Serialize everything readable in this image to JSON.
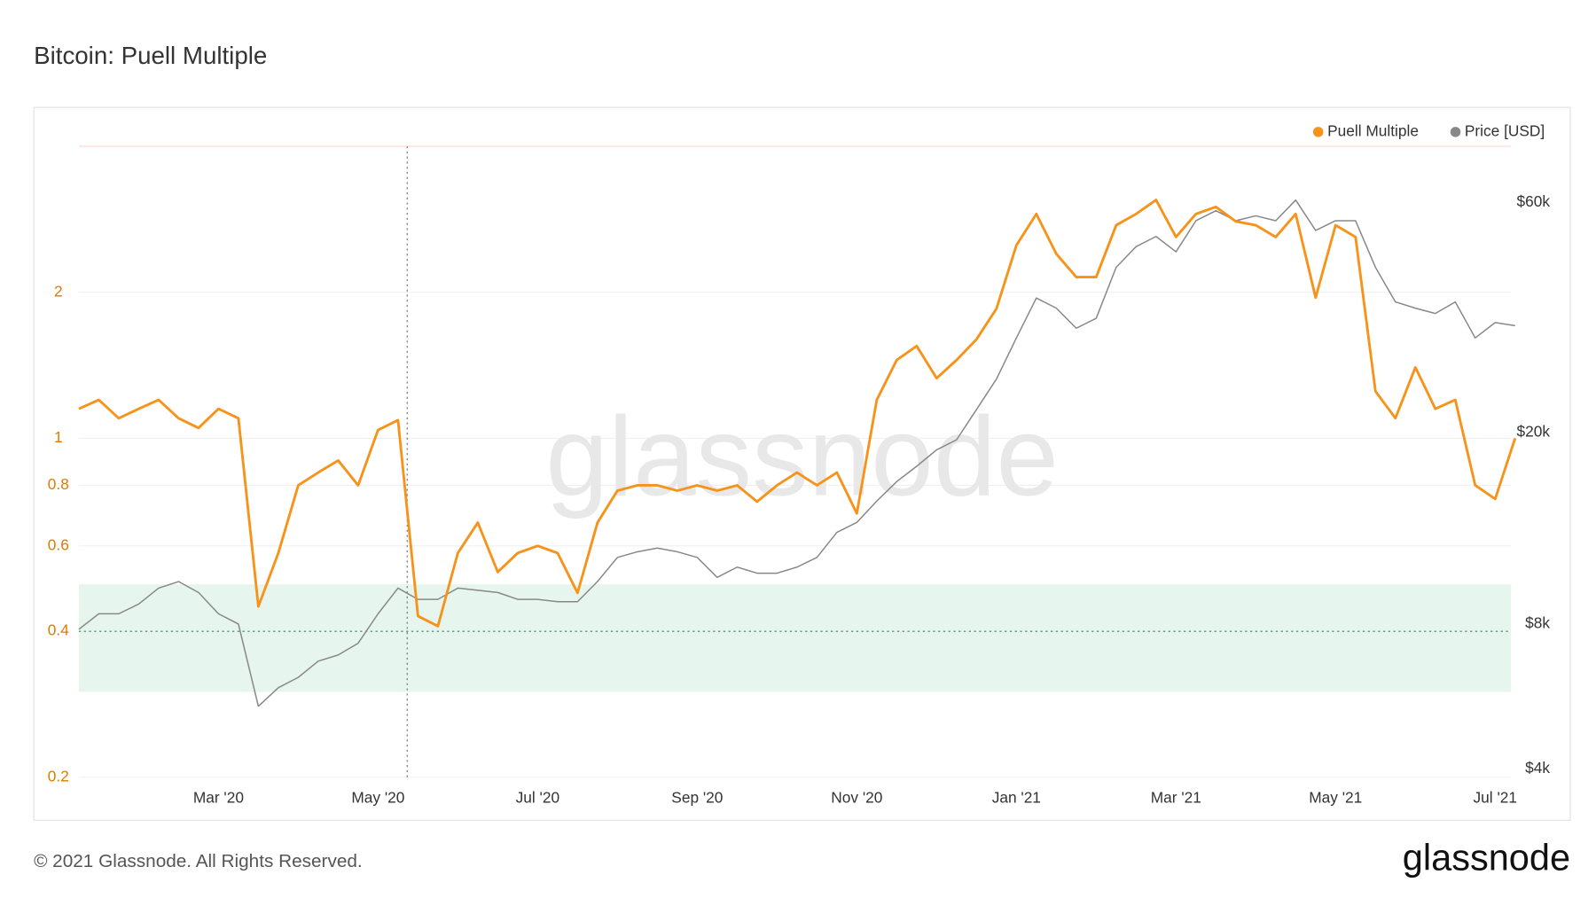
{
  "chart_data": {
    "type": "line",
    "title": "Bitcoin: Puell Multiple",
    "categories": [
      null,
      null,
      null,
      null,
      null,
      null,
      null,
      "Mar '20",
      null,
      null,
      null,
      null,
      null,
      null,
      null,
      "May '20",
      null,
      null,
      null,
      null,
      null,
      null,
      null,
      "Jul '20",
      null,
      null,
      null,
      null,
      null,
      null,
      null,
      "Sep '20",
      null,
      null,
      null,
      null,
      null,
      null,
      null,
      "Nov '20",
      null,
      null,
      null,
      null,
      null,
      null,
      null,
      "Jan '21",
      null,
      null,
      null,
      null,
      null,
      null,
      null,
      "Mar '21",
      null,
      null,
      null,
      null,
      null,
      null,
      null,
      "May '21",
      null,
      null,
      null,
      null,
      null,
      null,
      null,
      "Jul '21",
      null
    ],
    "series": [
      {
        "name": "Puell Multiple",
        "color": "#f7931a",
        "axis": "y",
        "values": [
          1.15,
          1.2,
          1.1,
          1.15,
          1.2,
          1.1,
          1.05,
          1.15,
          1.1,
          0.45,
          0.58,
          0.8,
          0.85,
          0.9,
          0.8,
          1.04,
          1.09,
          0.43,
          0.41,
          0.58,
          0.67,
          0.53,
          0.58,
          0.6,
          0.58,
          0.48,
          0.67,
          0.78,
          0.8,
          0.8,
          0.78,
          0.8,
          0.78,
          0.8,
          0.74,
          0.8,
          0.85,
          0.8,
          0.85,
          0.7,
          1.2,
          1.45,
          1.55,
          1.33,
          1.45,
          1.6,
          1.85,
          2.5,
          2.9,
          2.4,
          2.15,
          2.15,
          2.75,
          2.9,
          3.1,
          2.6,
          2.9,
          3.0,
          2.8,
          2.75,
          2.6,
          2.9,
          1.95,
          2.75,
          2.6,
          1.25,
          1.1,
          1.4,
          1.15,
          1.2,
          0.8,
          0.75,
          1.0
        ]
      },
      {
        "name": "Price [USD]",
        "color": "#888888",
        "axis": "y2",
        "values": [
          7800,
          8400,
          8400,
          8800,
          9500,
          9800,
          9300,
          8400,
          8000,
          5400,
          5900,
          6200,
          6700,
          6900,
          7300,
          8400,
          9500,
          9000,
          9000,
          9500,
          9400,
          9300,
          9000,
          9000,
          8900,
          8900,
          9800,
          11000,
          11300,
          11500,
          11300,
          11000,
          10000,
          10500,
          10200,
          10200,
          10500,
          11000,
          12400,
          13000,
          14400,
          15800,
          17000,
          18400,
          19300,
          22300,
          25800,
          31400,
          38000,
          36200,
          32900,
          34500,
          44000,
          48600,
          51000,
          47400,
          55000,
          57700,
          55000,
          56300,
          55000,
          60700,
          52500,
          55000,
          55000,
          44000,
          37300,
          36200,
          35300,
          37300,
          31400,
          33800,
          33300
        ]
      }
    ],
    "ylim": [
      0.2,
      4
    ],
    "yticks": [
      0.2,
      0.4,
      0.6,
      0.8,
      1,
      2
    ],
    "y_scale": "log",
    "y2lim": [
      3845,
      78500
    ],
    "y2ticks": [
      {
        "value": 4000,
        "label": "$4k"
      },
      {
        "value": 8000,
        "label": "$8k"
      },
      {
        "value": 20000,
        "label": "$20k"
      },
      {
        "value": 60000,
        "label": "$60k"
      }
    ],
    "y2_scale": "log",
    "grid": true,
    "legend": "top-right",
    "bands": [
      {
        "from": 0.3,
        "to": 0.5,
        "color": "#e6f6ee"
      }
    ],
    "reference_lines": [
      0.4
    ]
  },
  "watermark": "glassnode",
  "copyright": "© 2021 Glassnode. All Rights Reserved.",
  "logo": "glassnode"
}
